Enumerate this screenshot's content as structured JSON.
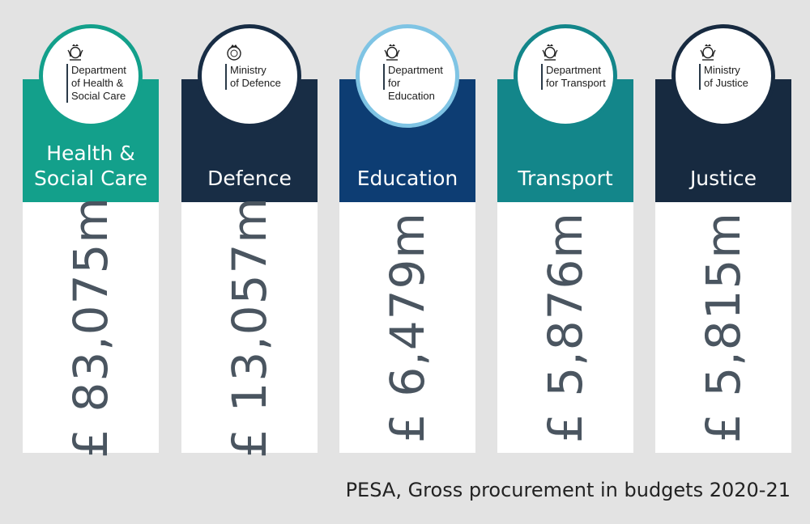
{
  "caption": "PESA, Gross procurement in budgets 2020-21",
  "chart_data": {
    "type": "bar",
    "categories": [
      "Health & Social Care",
      "Defence",
      "Education",
      "Transport",
      "Justice"
    ],
    "values": [
      83075,
      13057,
      6479,
      5876,
      5815
    ],
    "value_labels": [
      "£ 83,075m",
      "£ 13,057m",
      "£ 6,479m",
      "£ 5,876m",
      "£ 5,815m"
    ],
    "unit": "£m",
    "title": "PESA, Gross procurement in budgets 2020-21"
  },
  "departments": [
    {
      "name": "Health & Social Care",
      "band_label": "Health &\nSocial Care",
      "logo_text": "Department\nof Health &\nSocial Care",
      "value_label": "£ 83,075m",
      "color": "#13a08b",
      "badge_border": "#13a08b",
      "icon": "royal-crest-icon"
    },
    {
      "name": "Defence",
      "band_label": "Defence",
      "logo_text": "Ministry\nof Defence",
      "value_label": "£ 13,057m",
      "color": "#182d45",
      "badge_border": "#182d45",
      "icon": "mod-badge-icon"
    },
    {
      "name": "Education",
      "band_label": "Education",
      "logo_text": "Department\nfor Education",
      "value_label": "£ 6,479m",
      "color": "#0d3d73",
      "badge_border": "#7fc4e4",
      "icon": "royal-crest-icon"
    },
    {
      "name": "Transport",
      "band_label": "Transport",
      "logo_text": "Department\nfor Transport",
      "value_label": "£ 5,876m",
      "color": "#13868a",
      "badge_border": "#13868a",
      "icon": "royal-crest-icon"
    },
    {
      "name": "Justice",
      "band_label": "Justice",
      "logo_text": "Ministry\nof Justice",
      "value_label": "£ 5,815m",
      "color": "#172a40",
      "badge_border": "#172a40",
      "icon": "royal-crest-icon"
    }
  ]
}
